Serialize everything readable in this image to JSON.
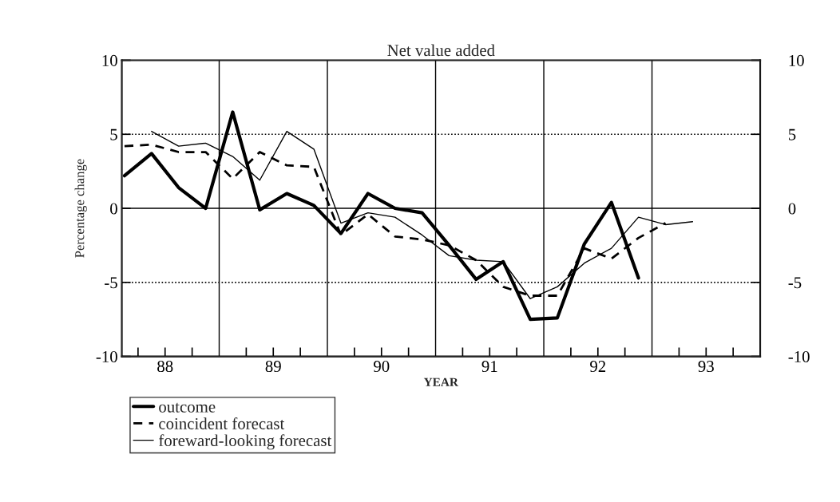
{
  "chart_data": {
    "type": "line",
    "title": "Net value added",
    "xlabel": "YEAR",
    "ylabel": "Percentage change",
    "xlim": [
      87.6,
      93.5
    ],
    "xticks": [
      {
        "value": 87.75,
        "label": null
      },
      88,
      {
        "value": 88.25,
        "label": null
      },
      {
        "value": 88.75,
        "label": null
      },
      89,
      {
        "value": 89.25,
        "label": null
      },
      {
        "value": 89.75,
        "label": null
      },
      90,
      {
        "value": 90.25,
        "label": null
      },
      {
        "value": 90.75,
        "label": null
      },
      91,
      {
        "value": 91.25,
        "label": null
      },
      {
        "value": 91.75,
        "label": null
      },
      92,
      {
        "value": 92.25,
        "label": null
      },
      {
        "value": 92.75,
        "label": null
      },
      93,
      {
        "value": 93.25,
        "label": null
      }
    ],
    "ylim": [
      -10,
      10
    ],
    "yticks": [
      -10,
      -5,
      0,
      5,
      10
    ],
    "y2lim": [
      -10,
      10
    ],
    "y2ticks": [
      -10,
      -5,
      0,
      5,
      10
    ],
    "grid": false,
    "legend": "bottom",
    "ref_lines": [
      {
        "axis": "x",
        "value": 88.5,
        "line_style": "solid"
      },
      {
        "axis": "x",
        "value": 89.5,
        "line_style": "solid"
      },
      {
        "axis": "x",
        "value": 90.5,
        "line_style": "solid"
      },
      {
        "axis": "x",
        "value": 91.5,
        "line_style": "solid"
      },
      {
        "axis": "x",
        "value": 92.5,
        "line_style": "solid"
      },
      {
        "axis": "y",
        "value": 0,
        "line_style": "solid"
      },
      {
        "axis": "y",
        "value": 5,
        "line_style": "dotted"
      },
      {
        "axis": "y",
        "value": -5,
        "line_style": "dotted"
      }
    ],
    "series": [
      {
        "name": "outcome",
        "color": "#000000",
        "line_style": "solid",
        "x": [
          87.625,
          87.875,
          88.125,
          88.375,
          88.625,
          88.875,
          89.125,
          89.375,
          89.625,
          89.875,
          90.125,
          90.375,
          90.625,
          90.875,
          91.125,
          91.375,
          91.625,
          91.875,
          92.125,
          92.375
        ],
        "values": [
          2.2,
          3.7,
          1.4,
          0.0,
          6.5,
          -0.1,
          1.0,
          0.2,
          -1.7,
          1.0,
          0.0,
          -0.3,
          -2.5,
          -4.8,
          -3.6,
          -7.5,
          -7.4,
          -2.4,
          0.4,
          -4.7
        ]
      },
      {
        "name": "coincident forecast",
        "color": "#000000",
        "line_style": "dashed",
        "x": [
          87.625,
          87.875,
          88.125,
          88.375,
          88.625,
          88.875,
          89.125,
          89.375,
          89.625,
          89.875,
          90.125,
          90.375,
          90.625,
          90.875,
          91.125,
          91.375,
          91.625,
          91.875,
          92.125,
          92.375,
          92.625
        ],
        "values": [
          4.2,
          4.3,
          3.8,
          3.8,
          2.0,
          3.8,
          2.9,
          2.8,
          -1.8,
          -0.4,
          -1.9,
          -2.1,
          -2.5,
          -3.5,
          -5.3,
          -5.9,
          -5.9,
          -2.7,
          -3.4,
          -2.0,
          -1.0
        ]
      },
      {
        "name": "foreward-looking forecast",
        "color": "#000000",
        "line_style": "solid",
        "x": [
          87.875,
          88.125,
          88.375,
          88.625,
          88.875,
          89.125,
          89.375,
          89.625,
          89.875,
          90.125,
          90.375,
          90.625,
          90.875,
          91.125,
          91.375,
          91.625,
          91.875,
          92.125,
          92.375,
          92.625,
          92.875
        ],
        "values": [
          5.2,
          4.2,
          4.4,
          3.5,
          1.9,
          5.2,
          4.0,
          -1.0,
          -0.3,
          -0.6,
          -1.8,
          -3.2,
          -3.5,
          -3.6,
          -6.1,
          -5.3,
          -3.7,
          -2.7,
          -0.6,
          -1.1,
          -0.9
        ]
      }
    ]
  }
}
